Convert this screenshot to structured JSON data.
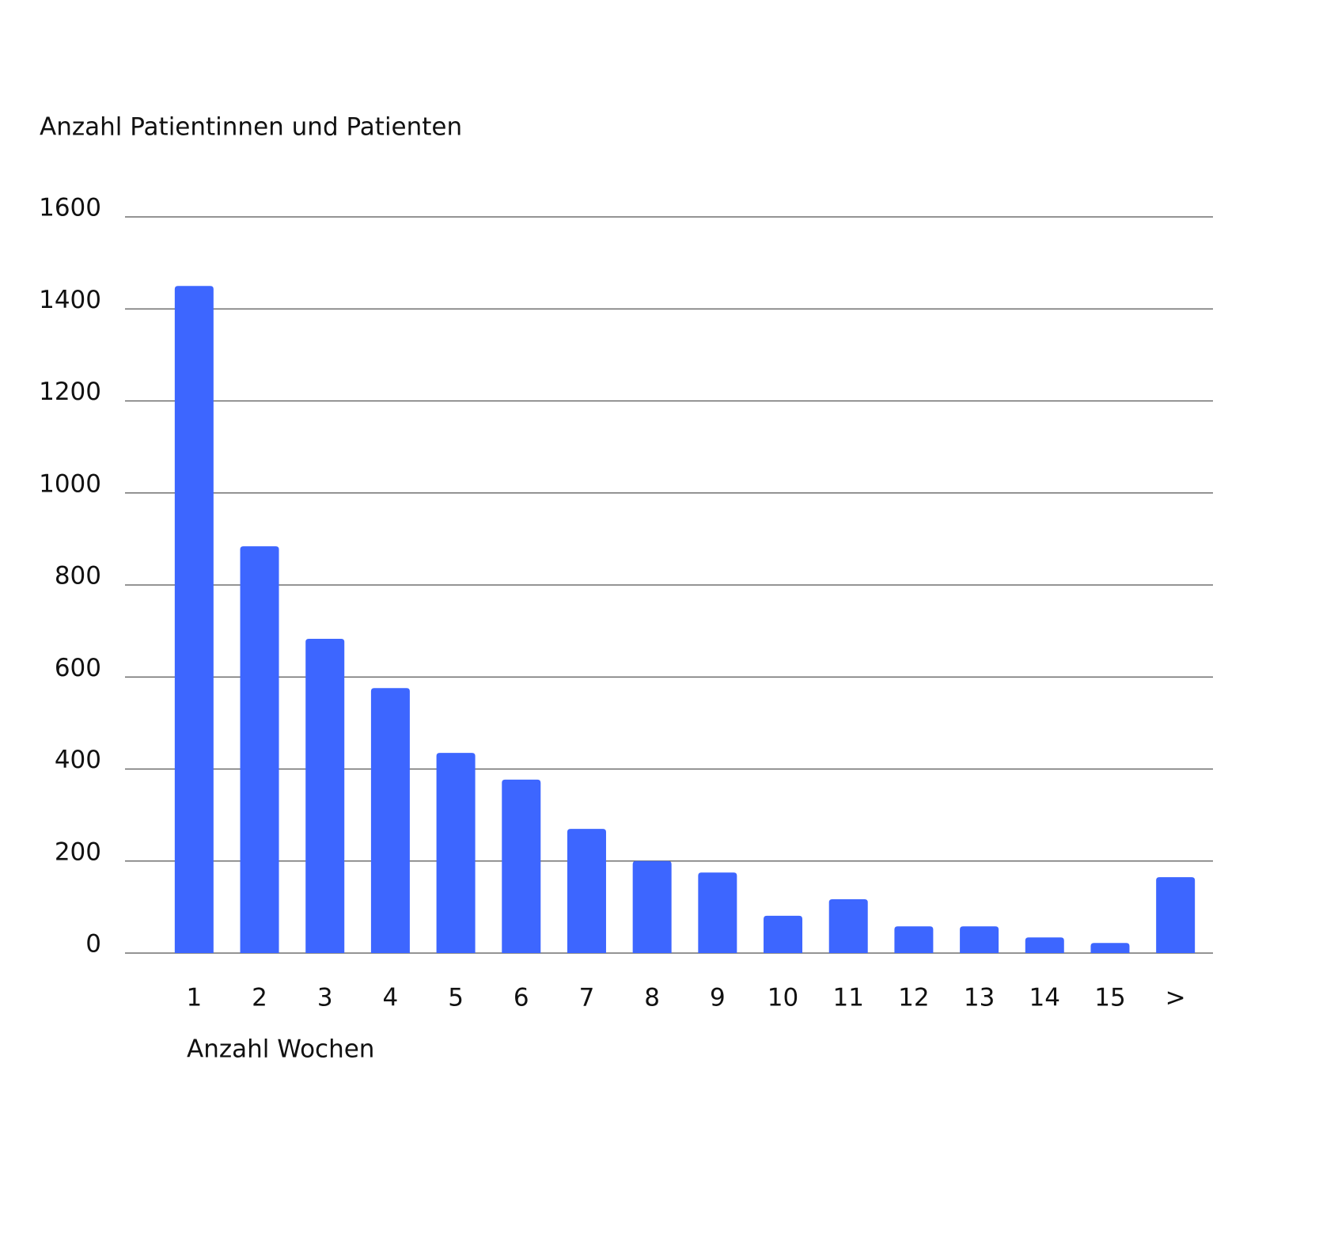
{
  "chart_data": {
    "type": "bar",
    "y_axis_label": "Anzahl Patientinnen und Patienten",
    "x_axis_label": "Anzahl Wochen",
    "categories": [
      "1",
      "2",
      "3",
      "4",
      "5",
      "6",
      "7",
      "8",
      "9",
      "10",
      "11",
      "12",
      "13",
      "14",
      "15",
      ">"
    ],
    "values": [
      1450,
      884,
      683,
      576,
      435,
      377,
      270,
      200,
      175,
      81,
      117,
      58,
      58,
      34,
      22,
      165
    ],
    "color": "#3d66ff",
    "ylim": [
      0,
      1600
    ],
    "yticks": [
      0,
      200,
      400,
      600,
      800,
      1000,
      1200,
      1400,
      1600
    ],
    "grid": true
  }
}
